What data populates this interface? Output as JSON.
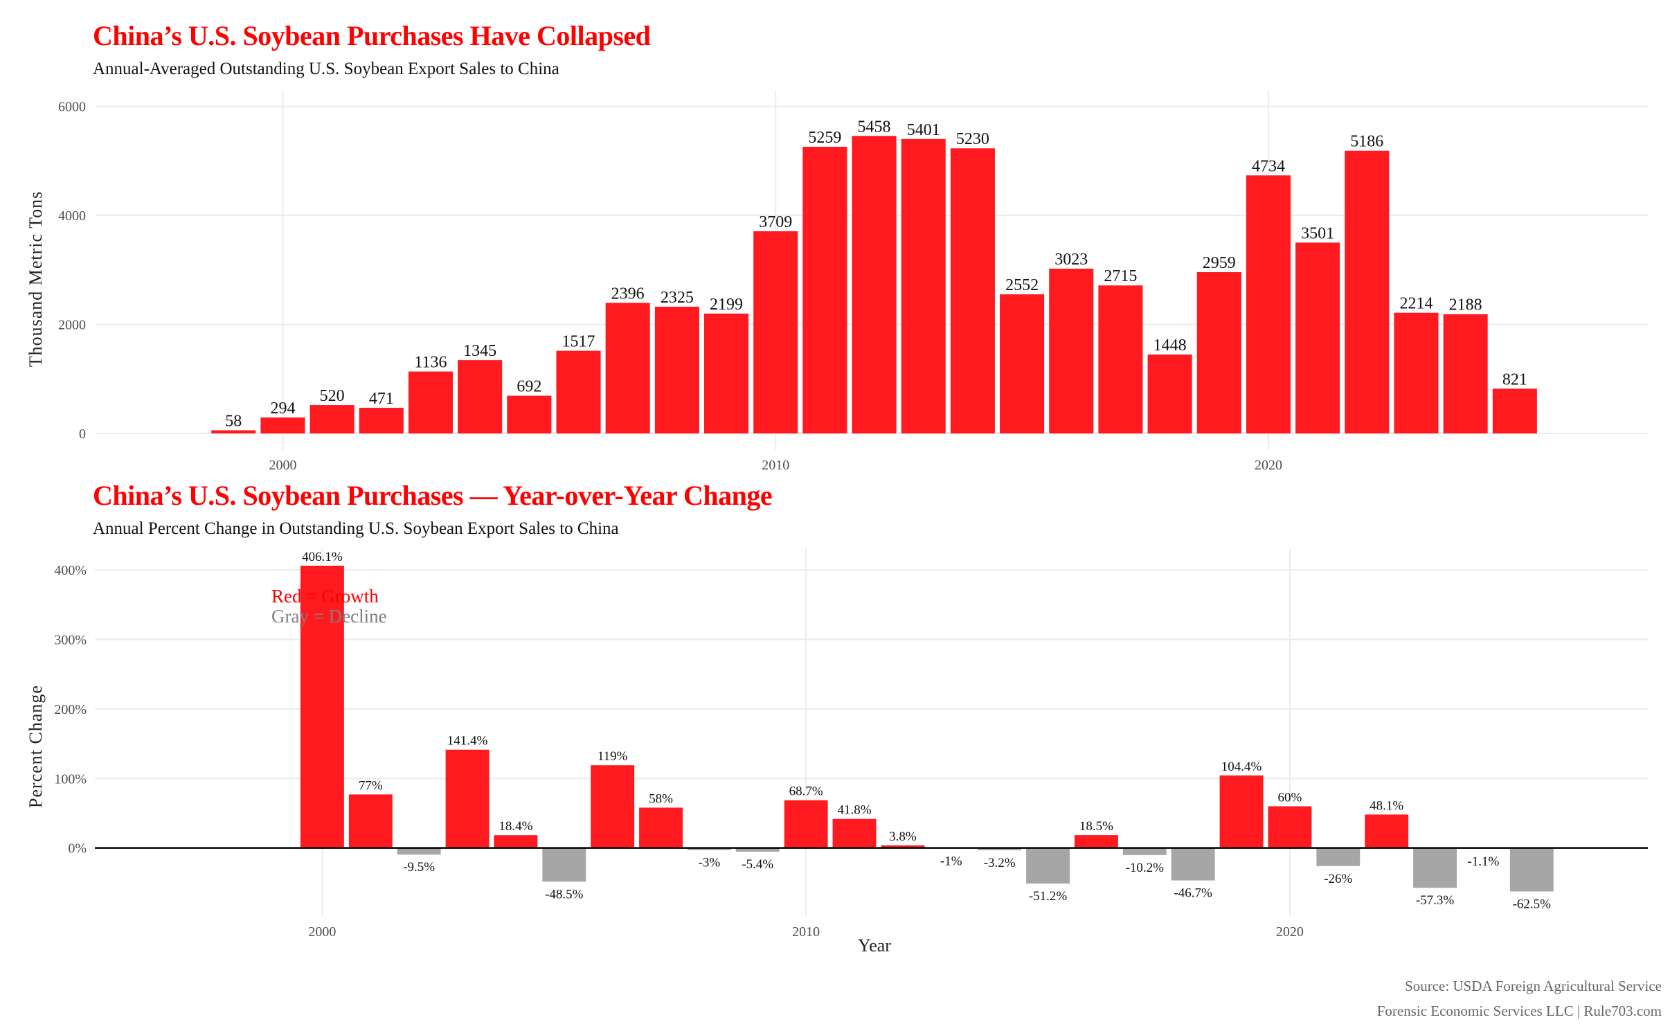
{
  "chart_data": [
    {
      "type": "bar",
      "title": "China’s U.S. Soybean Purchases Have Collapsed",
      "subtitle": "Annual-Averaged Outstanding U.S. Soybean Export Sales to China",
      "xlabel": "",
      "ylabel": "Thousand Metric Tons",
      "x": [
        1999,
        2000,
        2001,
        2002,
        2003,
        2004,
        2005,
        2006,
        2007,
        2008,
        2009,
        2010,
        2011,
        2012,
        2013,
        2014,
        2015,
        2016,
        2017,
        2018,
        2019,
        2020,
        2021,
        2022,
        2023,
        2024,
        2025
      ],
      "values": [
        58,
        294,
        520,
        471,
        1136,
        1345,
        692,
        1517,
        2396,
        2325,
        2199,
        3709,
        5259,
        5458,
        5401,
        5230,
        2552,
        3023,
        2715,
        1448,
        2959,
        4734,
        3501,
        5186,
        2214,
        2188,
        821
      ],
      "data_labels": [
        "58",
        "294",
        "520",
        "471",
        "1136",
        "1345",
        "692",
        "1517",
        "2396",
        "2325",
        "2199",
        "3709",
        "5259",
        "5458",
        "5401",
        "5230",
        "2552",
        "3023",
        "2715",
        "1448",
        "2959",
        "4734",
        "3501",
        "5186",
        "2214",
        "2188",
        "821"
      ],
      "xlim": [
        1996.2,
        2027.7
      ],
      "ylim": [
        0,
        6300
      ],
      "x_ticks": [
        2000,
        2010,
        2020
      ],
      "x_tick_labels": [
        "2000",
        "2010",
        "2020"
      ],
      "y_ticks": [
        0,
        2000,
        4000,
        6000
      ],
      "y_tick_labels": [
        "0",
        "2000",
        "4000",
        "6000"
      ],
      "bar_color": "#ff1a1f",
      "grid": true,
      "legend": "none"
    },
    {
      "type": "bar",
      "title": "China’s U.S. Soybean Purchases — Year-over-Year Change",
      "subtitle": "Annual Percent Change in Outstanding U.S. Soybean Export Sales to China",
      "xlabel": "Year",
      "ylabel": "Percent Change",
      "x": [
        2000,
        2001,
        2002,
        2003,
        2004,
        2005,
        2006,
        2007,
        2008,
        2009,
        2010,
        2011,
        2012,
        2013,
        2014,
        2015,
        2016,
        2017,
        2018,
        2019,
        2020,
        2021,
        2022,
        2023,
        2024,
        2025
      ],
      "values": [
        406.1,
        77,
        -9.5,
        141.4,
        18.4,
        -48.5,
        119,
        58,
        -3,
        -5.4,
        68.7,
        41.8,
        3.8,
        -1,
        -3.2,
        -51.2,
        18.5,
        -10.2,
        -46.7,
        104.4,
        60,
        -26,
        48.1,
        -57.3,
        -1.1,
        -62.5
      ],
      "data_labels": [
        "406.1%",
        "77%",
        "-9.5%",
        "141.4%",
        "18.4%",
        "-48.5%",
        "119%",
        "58%",
        "-3%",
        "-5.4%",
        "68.7%",
        "41.8%",
        "3.8%",
        "-1%",
        "-3.2%",
        "-51.2%",
        "18.5%",
        "-10.2%",
        "-46.7%",
        "104.4%",
        "60%",
        "-26%",
        "48.1%",
        "-57.3%",
        "-1.1%",
        "-62.5%"
      ],
      "xlim": [
        1995.3,
        2027.4
      ],
      "ylim": [
        -85,
        430
      ],
      "x_ticks": [
        2000,
        2010,
        2020
      ],
      "x_tick_labels": [
        "2000",
        "2010",
        "2020"
      ],
      "y_ticks": [
        0,
        100,
        200,
        300,
        400
      ],
      "y_tick_labels": [
        "0%",
        "100%",
        "200%",
        "300%",
        "400%"
      ],
      "growth_color": "#ff1a1f",
      "decline_color": "#a6a6a6",
      "annotation": {
        "growth_text": "Red = Growth",
        "decline_text": "Gray = Decline",
        "growth_text_color": "#ff0000",
        "decline_text_color": "#808080"
      },
      "zero_line": true,
      "grid": true,
      "legend": "none"
    }
  ],
  "captions": {
    "source": "Source: USDA Foreign Agricultural Service",
    "credit": "Forensic Economic Services LLC | Rule703.com"
  }
}
